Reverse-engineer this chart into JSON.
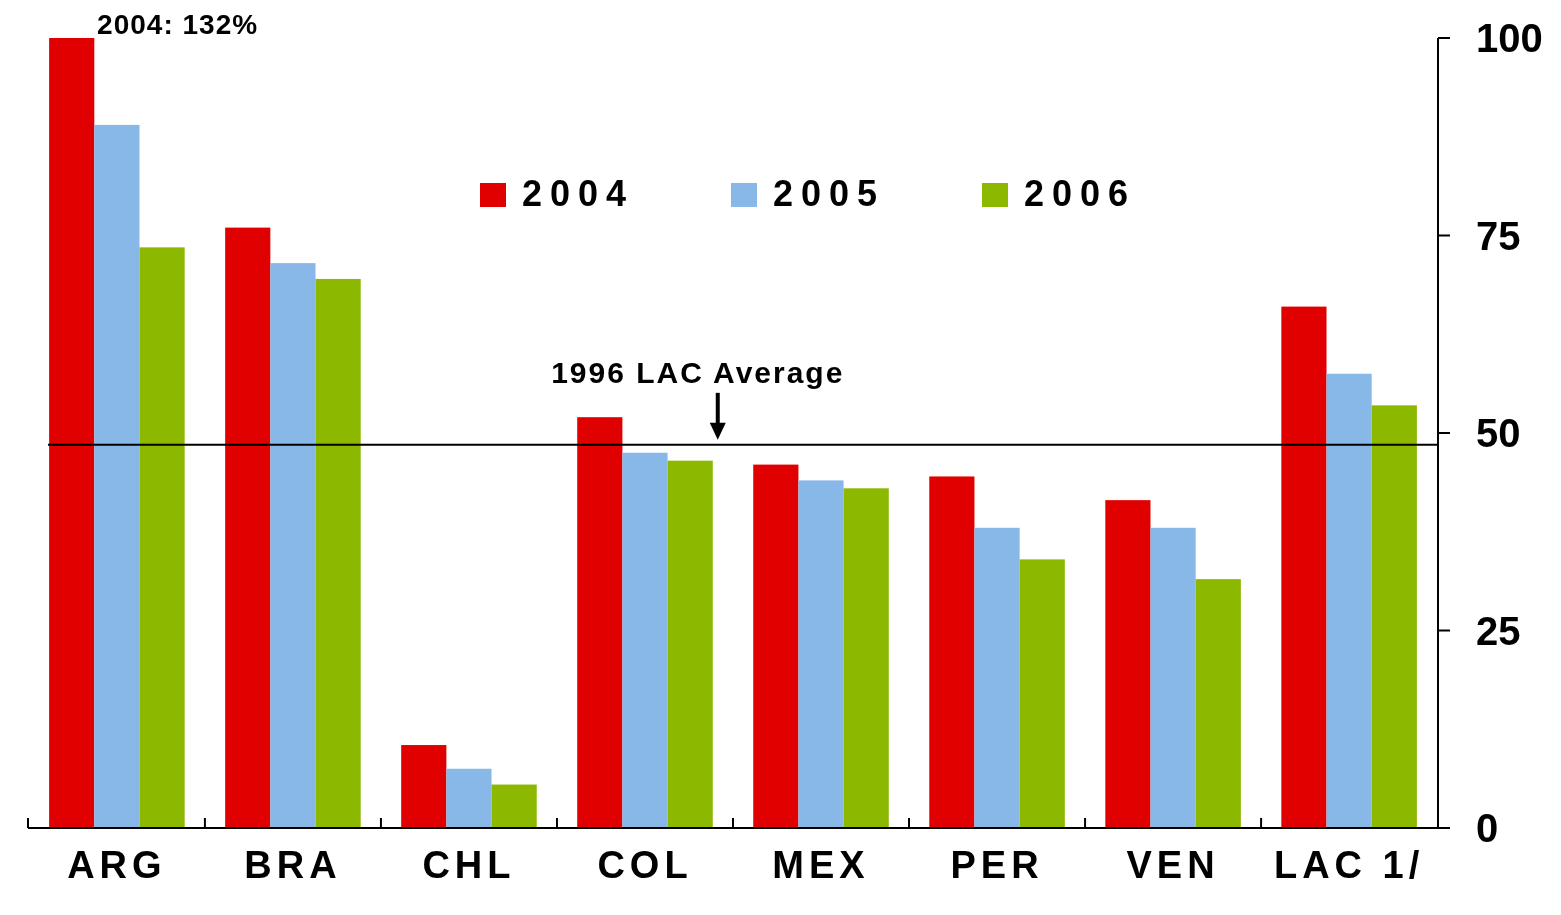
{
  "chart_data": {
    "type": "bar",
    "categories": [
      "ARG",
      "BRA",
      "CHL",
      "COL",
      "MEX",
      "PER",
      "VEN",
      "LAC 1/"
    ],
    "series": [
      {
        "name": "2004",
        "color": "#e00000",
        "values": [
          100,
          76,
          10.5,
          52,
          46,
          44.5,
          41.5,
          66
        ]
      },
      {
        "name": "2005",
        "color": "#88b8e8",
        "values": [
          89,
          71.5,
          7.5,
          47.5,
          44,
          38,
          38,
          57.5
        ]
      },
      {
        "name": "2006",
        "color": "#8cb800",
        "values": [
          73.5,
          69.5,
          5.5,
          46.5,
          43,
          34,
          31.5,
          53.5
        ]
      }
    ],
    "ylim": [
      0,
      100
    ],
    "yticks": [
      0,
      25,
      50,
      75,
      100
    ],
    "grid": false,
    "legend": "top",
    "ref_lines": [
      {
        "axis": "y",
        "value": 48.5,
        "label": "1996 LAC Average",
        "color": "#000000"
      }
    ],
    "annotations": [
      "2004: 132%"
    ]
  }
}
